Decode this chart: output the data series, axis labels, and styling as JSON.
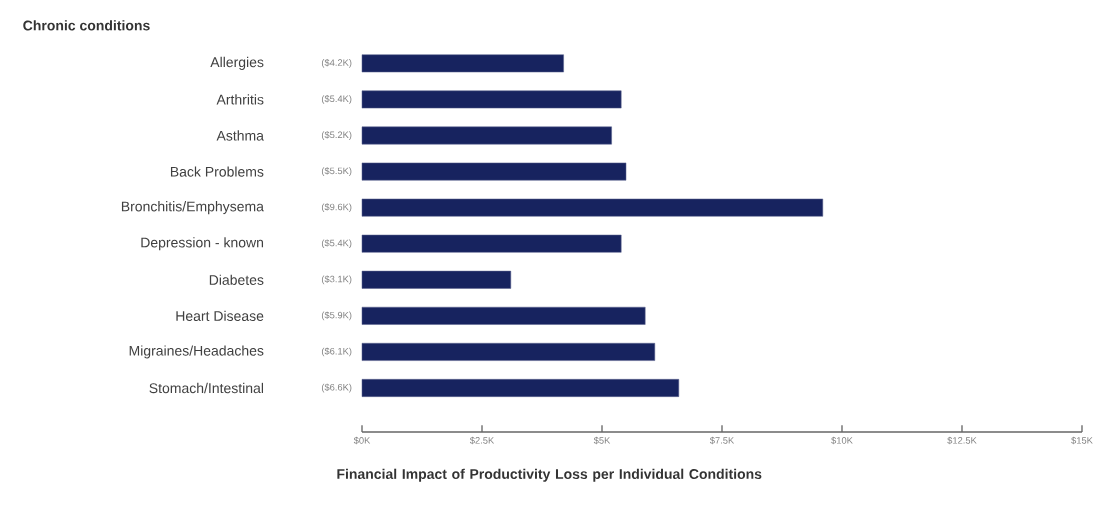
{
  "chart_data": {
    "type": "bar",
    "orientation": "horizontal",
    "title": "Chronic conditions",
    "xlabel": "Financial Impact of Productivity Loss per Individual Conditions",
    "categories": [
      "Allergies",
      "Arthritis",
      "Asthma",
      "Back Problems",
      "Bronchitis/Emphysema",
      "Depression - known",
      "Diabetes",
      "Heart Disease",
      "Migraines/Headaches",
      "Stomach/Intestinal"
    ],
    "values": [
      4.2,
      5.4,
      5.2,
      5.5,
      9.6,
      5.4,
      3.1,
      5.9,
      6.1,
      6.6
    ],
    "value_labels": [
      "($4.2K)",
      "($5.4K)",
      "($5.2K)",
      "($5.5K)",
      "($9.6K)",
      "($5.4K)",
      "($3.1K)",
      "($5.9K)",
      "($6.1K)",
      "($6.6K)"
    ],
    "color": "#17235f",
    "xlim": [
      0,
      15
    ],
    "xticks": [
      {
        "value": 0,
        "label": "$0K"
      },
      {
        "value": 2.5,
        "label": "$2.5K"
      },
      {
        "value": 5,
        "label": "$5K"
      },
      {
        "value": 7.5,
        "label": "$7.5K"
      },
      {
        "value": 10,
        "label": "$10K"
      },
      {
        "value": 12.5,
        "label": "$12.5K"
      },
      {
        "value": 15,
        "label": "$15K"
      }
    ],
    "grid": false,
    "legend": false
  }
}
